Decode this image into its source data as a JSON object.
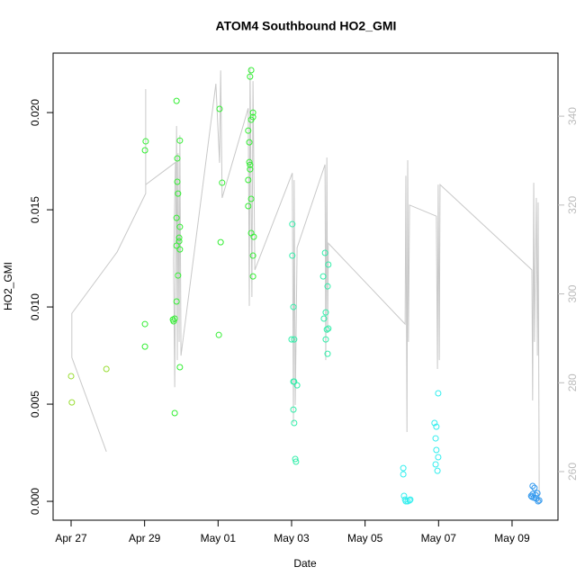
{
  "chart_data": {
    "type": "scatter",
    "title": "ATOM4 Southbound HO2_GMI",
    "x_label": "Date",
    "y_label": "HO2_GMI",
    "xlim": [
      -0.49,
      13.25
    ],
    "ylim": [
      -0.00097,
      0.02306
    ],
    "y2lim": [
      249.06,
      354.2
    ],
    "xticks": [
      {
        "value": 0,
        "label": "Apr 27"
      },
      {
        "value": 2,
        "label": "Apr 29"
      },
      {
        "value": 4,
        "label": "May 01"
      },
      {
        "value": 6,
        "label": "May 03"
      },
      {
        "value": 8,
        "label": "May 05"
      },
      {
        "value": 10,
        "label": "May 07"
      },
      {
        "value": 12,
        "label": "May 09"
      }
    ],
    "yticks": [
      {
        "value": 0,
        "label": "0.000"
      },
      {
        "value": 0.005,
        "label": "0.005"
      },
      {
        "value": 0.01,
        "label": "0.010"
      },
      {
        "value": 0.015,
        "label": "0.015"
      },
      {
        "value": 0.02,
        "label": "0.020"
      }
    ],
    "y2ticks": [
      260,
      280,
      300,
      320,
      340
    ],
    "line_color": "#c8c8c8",
    "y2_color": "#bbbbbb",
    "series": [
      {
        "type": "line",
        "axis": "y2",
        "color": "#c8c8c8",
        "x": [
          0.96,
          0.02,
          0.02,
          1.25,
          2.03,
          2.03,
          2.03,
          2.84,
          2.79,
          2.82,
          2.87,
          2.89,
          2.91,
          2.94,
          2.96,
          2.99,
          3.94,
          4.04,
          4.07,
          4.11,
          4.82,
          4.85,
          4.87,
          4.92,
          4.95,
          5.0,
          6.02,
          6.05,
          6.07,
          6.1,
          6.15,
          6.91,
          6.93,
          6.96,
          6.98,
          7.0,
          9.09,
          9.11,
          9.14,
          9.16,
          9.18,
          9.21,
          9.94,
          9.97,
          9.99,
          10.02,
          10.04,
          12.54,
          12.56,
          12.59,
          12.61,
          12.66,
          12.69,
          12.71,
          12.74
        ],
        "values": [
          264.5,
          285.7,
          295.6,
          309.4,
          322.6,
          346.1,
          324.6,
          329.6,
          307.4,
          279.0,
          337.8,
          285.1,
          331.7,
          289.2,
          335.7,
          286.1,
          347.3,
          329.5,
          350.3,
          321.6,
          341.8,
          297.3,
          350.9,
          299.3,
          347.9,
          305.4,
          327.2,
          270.9,
          325.6,
          275.0,
          310.4,
          329.1,
          285.1,
          330.7,
          291.2,
          311.4,
          293.2,
          326.6,
          268.9,
          330.1,
          289.2,
          320.0,
          317.5,
          283.1,
          324.6,
          285.1,
          324.6,
          305.4,
          276.0,
          325.0,
          289.2,
          321.6,
          286.1,
          320.6,
          252.7
        ]
      },
      {
        "type": "scatter",
        "color": "#99dd33",
        "x": [
          0,
          0.02,
          0.96
        ],
        "values": [
          0.00644,
          0.00509,
          0.00681
        ]
      },
      {
        "type": "scatter",
        "color": "#33ee33",
        "x": [
          2.01,
          2.03,
          2.01,
          2.01,
          2.77,
          2.79,
          2.82,
          2.82,
          2.87,
          2.89,
          2.89,
          2.91,
          2.87,
          2.87,
          2.94,
          2.96,
          2.94,
          2.96,
          2.91,
          2.87,
          2.96,
          2.96,
          4.04,
          4.11,
          4.07,
          4.02,
          4.9,
          4.87,
          4.95,
          4.95,
          4.9,
          4.82,
          4.85,
          4.85,
          4.87,
          4.87,
          4.82,
          4.9,
          4.82,
          4.9,
          4.97,
          4.95,
          4.95
        ],
        "values": [
          0.01806,
          0.01852,
          0.00912,
          0.00796,
          0.00935,
          0.00926,
          0.0094,
          0.00454,
          0.0206,
          0.01764,
          0.01644,
          0.01583,
          0.01458,
          0.01315,
          0.01356,
          0.01296,
          0.01338,
          0.01412,
          0.01162,
          0.01028,
          0.0069,
          0.01856,
          0.02019,
          0.01639,
          0.01333,
          0.00856,
          0.02218,
          0.02185,
          0.02,
          0.01977,
          0.01963,
          0.01907,
          0.01847,
          0.01745,
          0.01731,
          0.01708,
          0.01653,
          0.01556,
          0.01519,
          0.0138,
          0.01361,
          0.01264,
          0.01157
        ]
      },
      {
        "type": "scatter",
        "color": "#33eeaa",
        "x": [
          6.02,
          6.02,
          6.05,
          6.0,
          6.07,
          6.05,
          6.07,
          6.15,
          6.05,
          6.07,
          6.1,
          6.12,
          6.91,
          6.86,
          7.0,
          6.98,
          6.93,
          6.88,
          6.96,
          7.0,
          6.93,
          6.98
        ],
        "values": [
          0.01426,
          0.01264,
          0.01,
          0.00833,
          0.00833,
          0.00616,
          0.00616,
          0.00597,
          0.00472,
          0.00403,
          0.00218,
          0.00204,
          0.01278,
          0.01157,
          0.01218,
          0.01106,
          0.00972,
          0.0094,
          0.00884,
          0.00889,
          0.00833,
          0.00759
        ]
      },
      {
        "type": "scatter",
        "color": "#33eeee",
        "x": [
          9.04,
          9.04,
          9.06,
          9.09,
          9.11,
          9.16,
          9.21,
          9.23,
          9.89,
          9.94,
          9.92,
          9.94,
          9.99,
          9.92,
          9.97,
          9.99
        ],
        "values": [
          0.00171,
          0.00139,
          0.00028,
          9e-05,
          0,
          0,
          5e-05,
          9e-05,
          0.00403,
          0.00384,
          0.00324,
          0.00264,
          0.00227,
          0.0019,
          0.00157,
          0.00556
        ]
      },
      {
        "type": "scatter",
        "color": "#3399ee",
        "x": [
          12.56,
          12.61,
          12.56,
          12.54,
          12.64,
          12.69,
          12.59,
          12.66,
          12.71,
          12.74,
          12.52
        ],
        "values": [
          0.00079,
          0.00069,
          0.00037,
          0.00023,
          0.00032,
          0.00042,
          0.00019,
          0.00014,
          0,
          5e-05,
          0.00028
        ]
      }
    ]
  }
}
